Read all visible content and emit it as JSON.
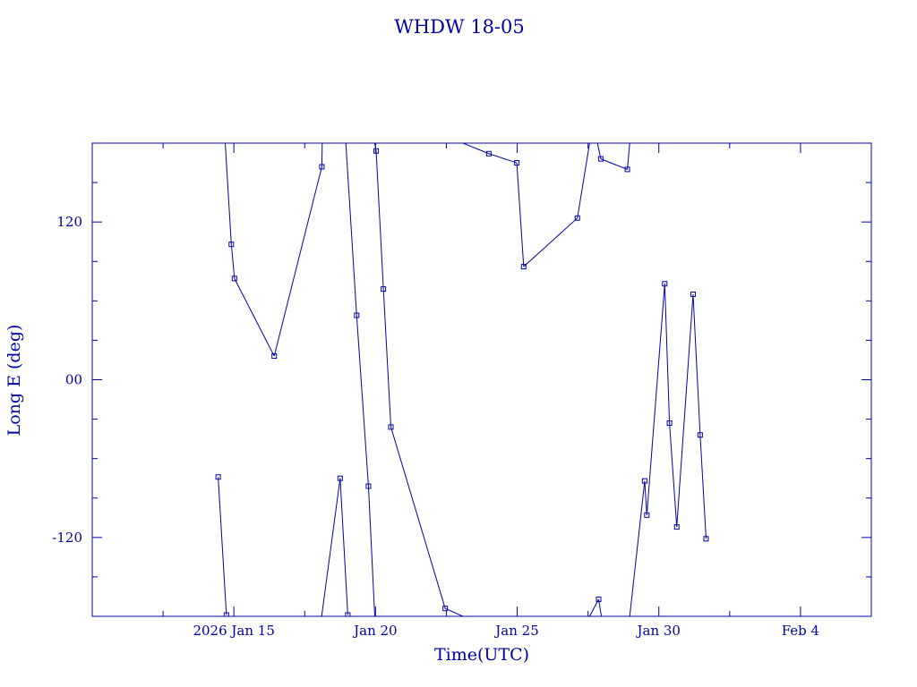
{
  "colors": {
    "ink": "#0000a8",
    "background": "#ffffff"
  },
  "chart_data": {
    "type": "line",
    "title": "WHDW 18-05",
    "xlabel": "Time(UTC)",
    "ylabel": "Long E (deg)",
    "xlim": [
      "2026-01-10T00:00",
      "2026-02-06T12:00"
    ],
    "ylim": [
      -180,
      180
    ],
    "x_ticks": [
      {
        "at": "2026-01-15T00:00",
        "label": "2026 Jan 15"
      },
      {
        "at": "2026-01-20T00:00",
        "label": "Jan 20"
      },
      {
        "at": "2026-01-25T00:00",
        "label": "Jan 25"
      },
      {
        "at": "2026-01-30T00:00",
        "label": "Jan 30"
      },
      {
        "at": "2026-02-04T00:00",
        "label": "Feb  4"
      }
    ],
    "y_ticks": [
      {
        "value": 120,
        "label": "120"
      },
      {
        "value": 0,
        "label": "00"
      },
      {
        "value": -120,
        "label": "-120"
      }
    ],
    "grid": false,
    "legend": "none",
    "marker": "square",
    "points": [
      {
        "x": "2026-01-14T10:40",
        "y": -74
      },
      {
        "x": "2026-01-14T17:40",
        "y": -179
      },
      {
        "x": "2026-01-14T16:40",
        "y": 180
      },
      {
        "x": "2026-01-14T21:50",
        "y": 103
      },
      {
        "x": "2026-01-15T00:30",
        "y": 77
      },
      {
        "x": "2026-01-16T10:10",
        "y": 18
      },
      {
        "x": "2026-01-18T02:30",
        "y": 162
      },
      {
        "x": "2026-01-18T02:50",
        "y": 180
      },
      {
        "x": "2026-01-18T02:20",
        "y": -180
      },
      {
        "x": "2026-01-18T18:00",
        "y": -75
      },
      {
        "x": "2026-01-19T00:30",
        "y": -179
      },
      {
        "x": "2026-01-18T22:50",
        "y": 180
      },
      {
        "x": "2026-01-19T08:00",
        "y": 49
      },
      {
        "x": "2026-01-19T18:00",
        "y": -81
      },
      {
        "x": "2026-01-19T23:20",
        "y": -180
      },
      {
        "x": "2026-01-19T23:20",
        "y": 180
      },
      {
        "x": "2026-01-20T00:30",
        "y": 174
      },
      {
        "x": "2026-01-20T06:40",
        "y": 69
      },
      {
        "x": "2026-01-20T13:00",
        "y": -36
      },
      {
        "x": "2026-01-22T11:00",
        "y": -174
      },
      {
        "x": "2026-01-23T02:00",
        "y": -180
      },
      {
        "x": "2026-01-23T02:00",
        "y": 180
      },
      {
        "x": "2026-01-24T00:00",
        "y": 172
      },
      {
        "x": "2026-01-24T23:40",
        "y": 165
      },
      {
        "x": "2026-01-25T05:30",
        "y": 86
      },
      {
        "x": "2026-01-27T03:00",
        "y": 123
      },
      {
        "x": "2026-01-27T13:20",
        "y": 180
      },
      {
        "x": "2026-01-27T13:20",
        "y": -180
      },
      {
        "x": "2026-01-27T21:00",
        "y": -167
      },
      {
        "x": "2026-01-27T23:20",
        "y": -180
      },
      {
        "x": "2026-01-27T20:00",
        "y": 180
      },
      {
        "x": "2026-01-27T22:50",
        "y": 168
      },
      {
        "x": "2026-01-28T21:20",
        "y": 160
      },
      {
        "x": "2026-01-28T23:20",
        "y": 180
      },
      {
        "x": "2026-01-28T23:20",
        "y": -180
      },
      {
        "x": "2026-01-29T12:00",
        "y": -77
      },
      {
        "x": "2026-01-29T13:50",
        "y": -103
      },
      {
        "x": "2026-01-30T05:00",
        "y": 73
      },
      {
        "x": "2026-01-30T09:00",
        "y": -33
      },
      {
        "x": "2026-01-30T15:10",
        "y": -112
      },
      {
        "x": "2026-01-31T05:00",
        "y": 65
      },
      {
        "x": "2026-01-31T11:00",
        "y": -42
      },
      {
        "x": "2026-01-31T16:00",
        "y": -121
      }
    ],
    "segments": [
      [
        0,
        1
      ],
      [
        2,
        3
      ],
      [
        3,
        4
      ],
      [
        4,
        5
      ],
      [
        5,
        6
      ],
      [
        6,
        7
      ],
      [
        8,
        9
      ],
      [
        9,
        10
      ],
      [
        11,
        12
      ],
      [
        12,
        13
      ],
      [
        13,
        14
      ],
      [
        15,
        16
      ],
      [
        16,
        17
      ],
      [
        17,
        18
      ],
      [
        18,
        19
      ],
      [
        19,
        20
      ],
      [
        21,
        22
      ],
      [
        22,
        23
      ],
      [
        23,
        24
      ],
      [
        24,
        25
      ],
      [
        25,
        26
      ],
      [
        27,
        28
      ],
      [
        28,
        29
      ],
      [
        30,
        31
      ],
      [
        31,
        32
      ],
      [
        32,
        33
      ],
      [
        34,
        35
      ],
      [
        35,
        36
      ],
      [
        36,
        37
      ],
      [
        37,
        38
      ],
      [
        38,
        39
      ],
      [
        39,
        40
      ],
      [
        40,
        41
      ],
      [
        41,
        42
      ]
    ],
    "marked": [
      0,
      1,
      3,
      4,
      5,
      6,
      9,
      10,
      12,
      13,
      16,
      17,
      18,
      19,
      22,
      23,
      24,
      25,
      28,
      31,
      32,
      35,
      36,
      37,
      38,
      39,
      40,
      41,
      42
    ]
  }
}
